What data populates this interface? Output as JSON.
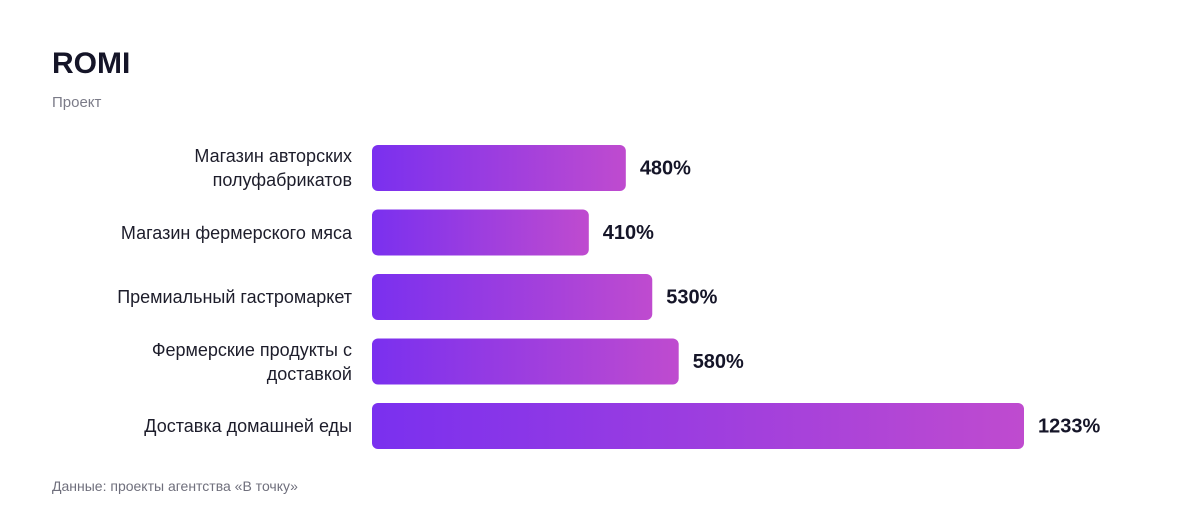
{
  "chart_data": {
    "type": "bar",
    "orientation": "horizontal",
    "title": "ROMI",
    "subtitle": "Проект",
    "categories": [
      "Магазин авторских полуфабрикатов",
      "Магазин фермерского мяса",
      "Премиальный гастромаркет",
      "Фермерские продукты с доставкой",
      "Доставка домашней еды"
    ],
    "values": [
      480,
      410,
      530,
      580,
      1233
    ],
    "value_labels": [
      "480%",
      "410%",
      "530%",
      "580%",
      "1233%"
    ],
    "gradient": [
      "#7a30ef",
      "#bf4bcf"
    ],
    "source": "Данные: проекты агентства «В точку»"
  }
}
